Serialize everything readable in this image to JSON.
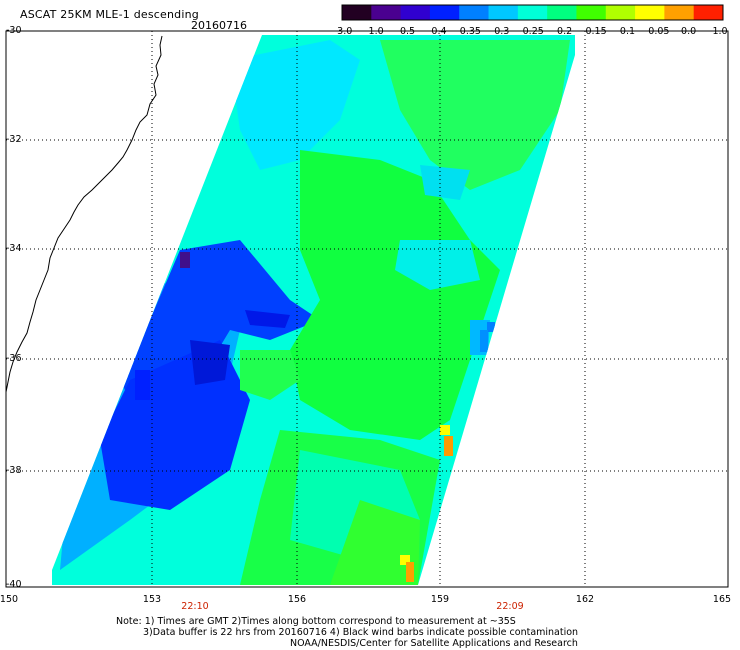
{
  "header": {
    "title": "ASCAT 25KM MLE-1 descending",
    "date": "20160716"
  },
  "colorbar": {
    "labels": [
      "-3.0",
      "-1.0",
      "-0.5",
      "-0.4",
      "-0.35",
      "-0.3",
      "-0.25",
      "-0.2",
      "-0.15",
      "-0.1",
      "-0.05",
      "0.0",
      "1.0"
    ],
    "colors": [
      "#220022",
      "#4a0090",
      "#3000d0",
      "#0020ff",
      "#0080ff",
      "#00c8ff",
      "#00ffd8",
      "#00ff80",
      "#40ff00",
      "#b0ff00",
      "#ffff00",
      "#ffa000",
      "#ff2000"
    ]
  },
  "axes": {
    "lat_labels": [
      "-30",
      "-32",
      "-34",
      "-36",
      "-38",
      "-40"
    ],
    "lon_labels": [
      "150",
      "153",
      "156",
      "159",
      "162",
      "165"
    ],
    "time_labels": [
      "22:10",
      "22:09"
    ]
  },
  "notes": {
    "line1": "Note: 1) Times are GMT 2)Times along bottom correspond to measurement at ~35S",
    "line2": "3)Data buffer is 22 hrs from 20160716 4) Black wind barbs indicate possible contamination",
    "line3": "NOAA/NESDIS/Center for Satellite Applications and Research"
  },
  "map_colors": {
    "base_swath": "#00ffdc",
    "dark_blue": "#0018ff",
    "mid_blue": "#0070ff",
    "light_blue": "#00b8ff",
    "green": "#10ff40",
    "light_green": "#30ff60",
    "yellow": "#e8ff00",
    "orange": "#ff9a00"
  }
}
